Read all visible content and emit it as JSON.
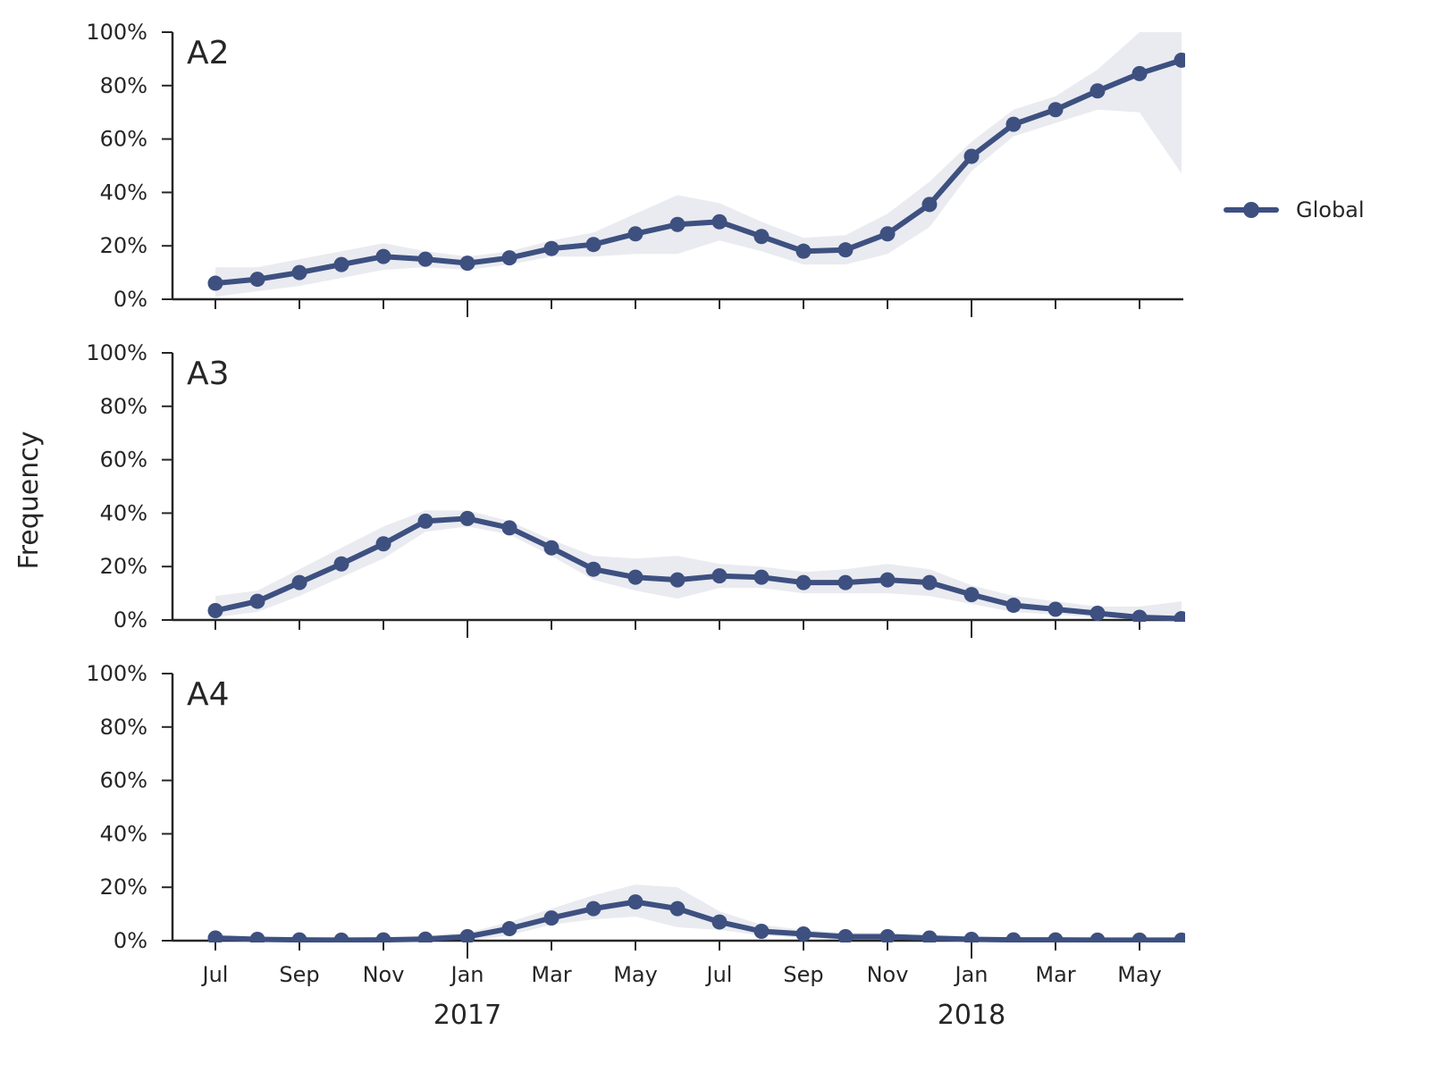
{
  "chart_data": {
    "type": "line",
    "ylabel": "Frequency",
    "y_ticks": [
      "0%",
      "20%",
      "40%",
      "60%",
      "80%",
      "100%"
    ],
    "ylim": [
      0,
      100
    ],
    "x_tick_labels": [
      "Jul",
      "Sep",
      "Nov",
      "Jan",
      "Mar",
      "May",
      "Jul",
      "Sep",
      "Nov",
      "Jan",
      "Mar",
      "May"
    ],
    "x_years": [
      "2017",
      "2018"
    ],
    "x_dates": [
      "2016-07",
      "2016-08",
      "2016-09",
      "2016-10",
      "2016-11",
      "2016-12",
      "2017-01",
      "2017-02",
      "2017-03",
      "2017-04",
      "2017-05",
      "2017-06",
      "2017-07",
      "2017-08",
      "2017-09",
      "2017-10",
      "2017-11",
      "2017-12",
      "2018-01",
      "2018-02",
      "2018-03",
      "2018-04",
      "2018-05",
      "2018-06"
    ],
    "legend": {
      "label": "Global",
      "placement": "right"
    },
    "color": "#3d5080",
    "band_color": "#eaebf0",
    "panels": [
      {
        "label": "A2",
        "series": [
          {
            "name": "Global",
            "values": [
              6,
              7.5,
              10,
              13,
              16,
              15,
              13.5,
              15.5,
              19,
              20.5,
              24.5,
              28,
              29,
              23.5,
              18,
              18.5,
              24.5,
              35.5,
              53.5,
              65.5,
              71,
              78,
              84.5,
              89.5
            ],
            "lower": [
              1,
              3,
              5,
              8,
              11,
              12,
              11,
              13,
              16,
              16,
              17,
              17,
              22,
              18,
              13,
              13,
              17,
              27,
              48,
              61,
              66,
              71,
              70,
              47
            ],
            "upper": [
              12,
              12,
              15,
              18,
              21,
              18,
              16,
              18,
              22,
              25,
              32,
              39,
              36,
              29,
              23,
              24,
              32,
              44,
              59,
              71,
              76,
              86,
              100,
              100
            ]
          }
        ]
      },
      {
        "label": "A3",
        "series": [
          {
            "name": "Global",
            "values": [
              3.5,
              7,
              14,
              21,
              28.5,
              37,
              38,
              34.5,
              27,
              19,
              16,
              15,
              16.5,
              16,
              14,
              14,
              15,
              14,
              9.5,
              5.5,
              4,
              2.5,
              1,
              0.5
            ],
            "lower": [
              1,
              3,
              9,
              16,
              23,
              33,
              35,
              32,
              24,
              15,
              11,
              8,
              12,
              12,
              10,
              10,
              10,
              9,
              6,
              3,
              2,
              1,
              0,
              0
            ],
            "upper": [
              9,
              11,
              19,
              27,
              35,
              41,
              41,
              37,
              30,
              24,
              23,
              24,
              21,
              20,
              18,
              19,
              21,
              19,
              13,
              9,
              7,
              5,
              5,
              7
            ]
          }
        ]
      },
      {
        "label": "A4",
        "series": [
          {
            "name": "Global",
            "values": [
              1,
              0.5,
              0.3,
              0.2,
              0.3,
              0.6,
              1.5,
              4.5,
              8.5,
              12,
              14.5,
              12,
              7,
              3.5,
              2.5,
              1.5,
              1.5,
              1,
              0.5,
              0.3,
              0.3,
              0.2,
              0.2,
              0.2
            ],
            "lower": [
              0,
              0,
              0,
              0,
              0,
              0,
              0,
              2,
              6,
              8,
              9,
              5,
              4,
              2,
              1,
              0,
              0,
              0,
              0,
              0,
              0,
              0,
              0,
              0
            ],
            "upper": [
              2,
              1,
              1,
              1,
              1,
              2,
              3,
              7,
              12,
              17,
              21,
              20,
              11,
              6,
              4,
              3,
              3,
              2,
              1.5,
              1,
              1,
              1,
              1,
              1
            ]
          }
        ]
      }
    ]
  }
}
